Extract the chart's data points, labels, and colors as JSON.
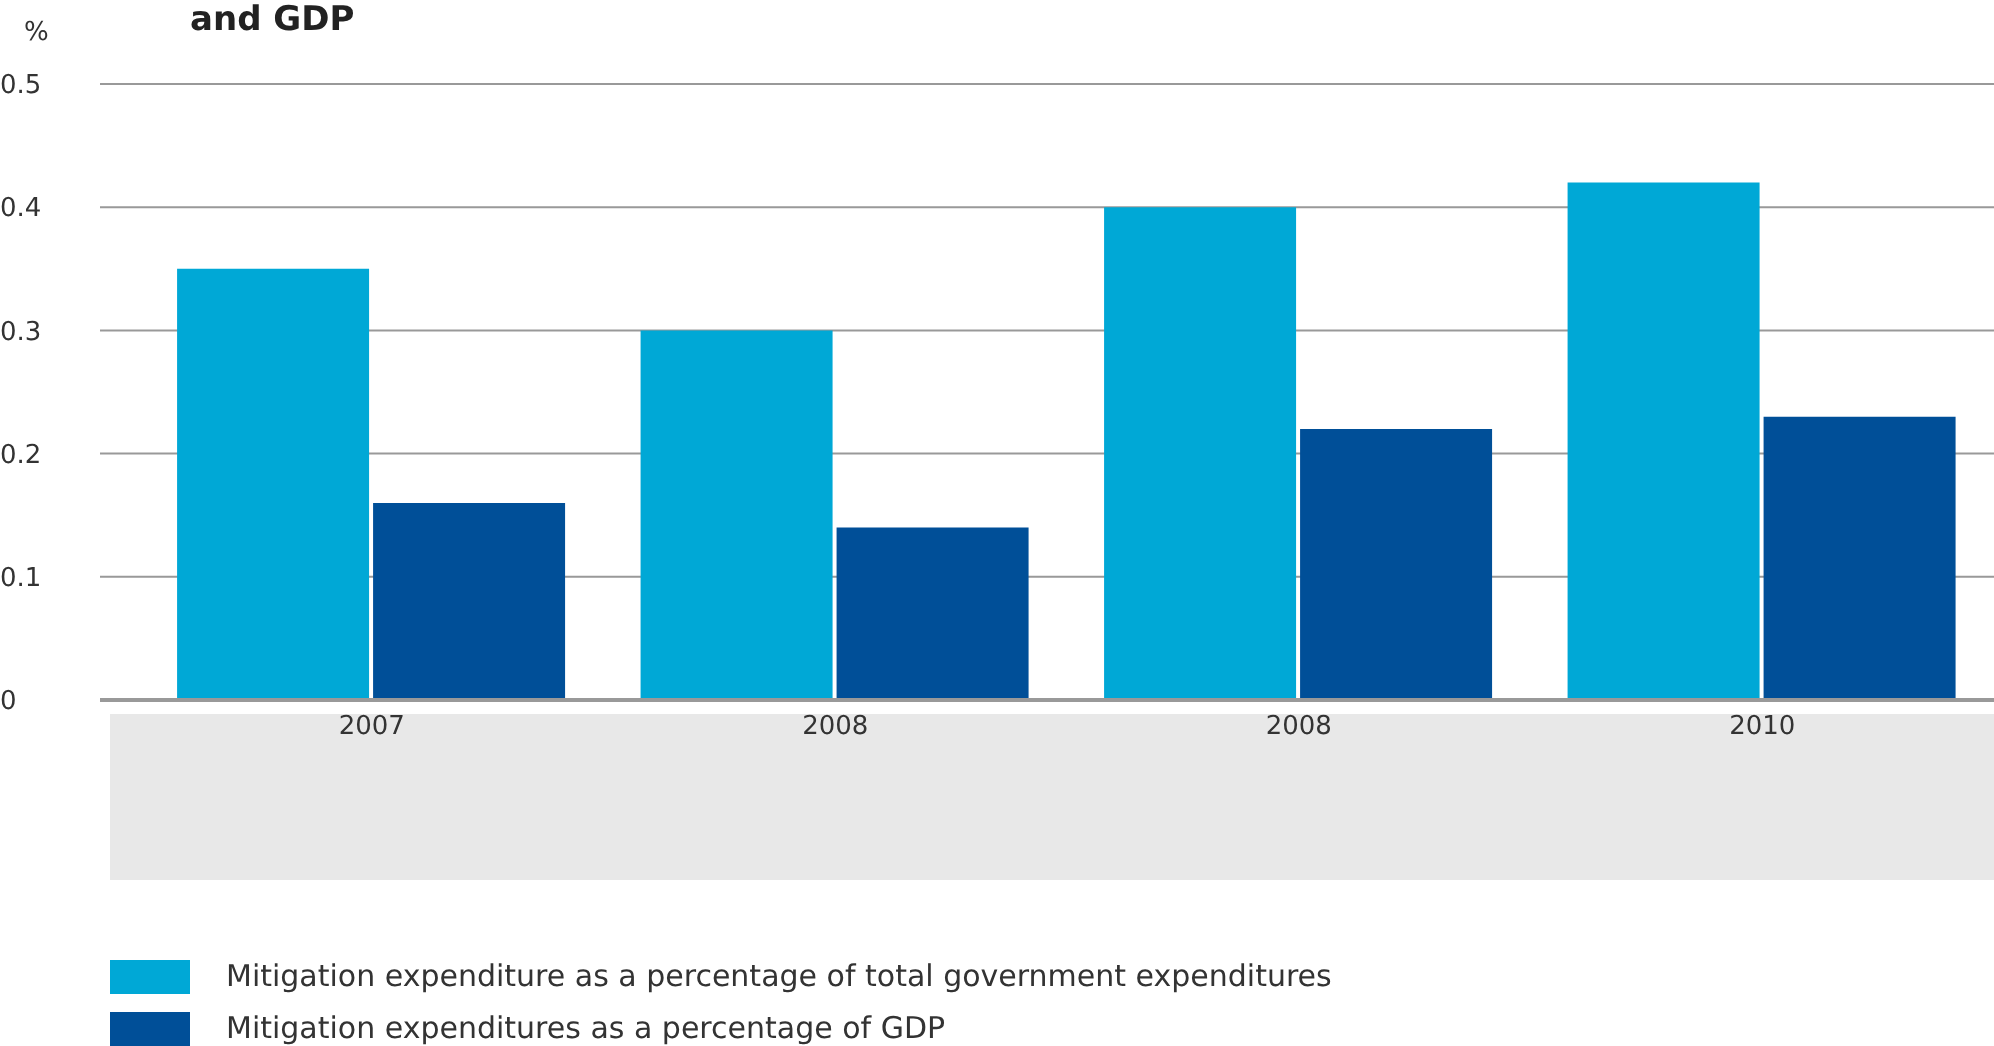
{
  "chart_data": {
    "type": "bar",
    "title": "and GDP",
    "ylabel": "%",
    "categories": [
      "2007",
      "2008",
      "2008",
      "2010"
    ],
    "series": [
      {
        "name": "Mitigation expenditure as a percentage of total government expenditures",
        "color": "#00a8d6",
        "values": [
          0.35,
          0.3,
          0.4,
          0.42
        ]
      },
      {
        "name": "Mitigation expenditures as a percentage of GDP",
        "color": "#004f98",
        "values": [
          0.16,
          0.14,
          0.22,
          0.23
        ]
      }
    ],
    "ylim": [
      0,
      0.5
    ],
    "yticks": [
      0,
      0.1,
      0.2,
      0.3,
      0.4,
      0.5
    ],
    "grid": "y",
    "legend": "bottom"
  }
}
